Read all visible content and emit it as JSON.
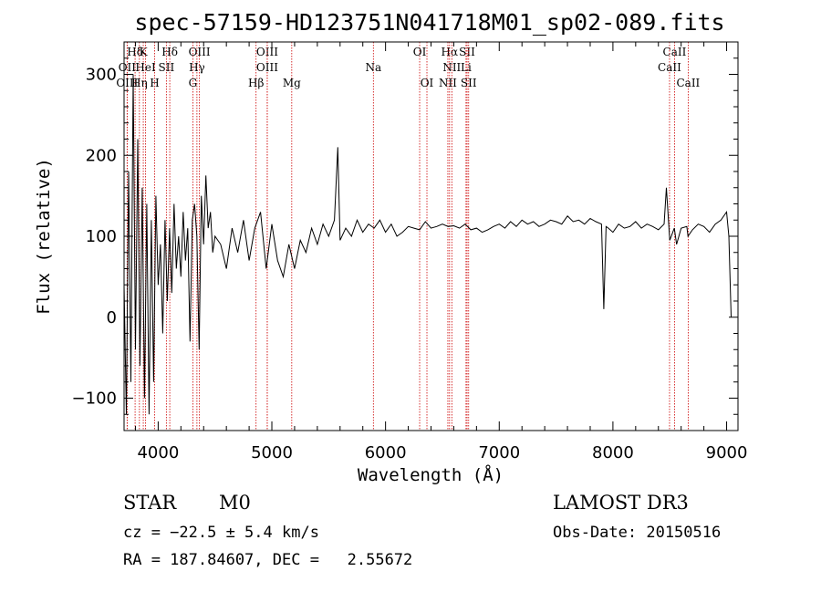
{
  "chart_data": {
    "type": "line",
    "title": "spec-57159-HD123751N041718M01_sp02-089.fits",
    "xlabel": "Wavelength (Å)",
    "ylabel": "Flux (relative)",
    "xlim": [
      3700,
      9100
    ],
    "ylim": [
      -140,
      340
    ],
    "xticks": [
      4000,
      5000,
      6000,
      7000,
      8000,
      9000
    ],
    "yticks": [
      -100,
      0,
      100,
      200,
      300
    ],
    "series": [
      {
        "name": "flux",
        "color": "#000000",
        "x": [
          3700,
          3720,
          3740,
          3760,
          3780,
          3800,
          3820,
          3840,
          3860,
          3880,
          3900,
          3920,
          3940,
          3960,
          3980,
          4000,
          4020,
          4040,
          4060,
          4080,
          4100,
          4120,
          4140,
          4160,
          4180,
          4200,
          4220,
          4240,
          4260,
          4280,
          4300,
          4320,
          4340,
          4360,
          4380,
          4400,
          4420,
          4440,
          4460,
          4480,
          4500,
          4550,
          4600,
          4650,
          4700,
          4750,
          4800,
          4850,
          4900,
          4950,
          5000,
          5050,
          5100,
          5150,
          5200,
          5250,
          5300,
          5350,
          5400,
          5450,
          5500,
          5550,
          5580,
          5600,
          5650,
          5700,
          5750,
          5800,
          5850,
          5900,
          5950,
          6000,
          6050,
          6100,
          6150,
          6200,
          6250,
          6300,
          6350,
          6400,
          6450,
          6500,
          6550,
          6600,
          6650,
          6700,
          6750,
          6800,
          6850,
          6900,
          6950,
          7000,
          7050,
          7100,
          7150,
          7200,
          7250,
          7300,
          7350,
          7400,
          7450,
          7500,
          7550,
          7600,
          7650,
          7700,
          7750,
          7800,
          7850,
          7900,
          7920,
          7940,
          7960,
          8000,
          8050,
          8100,
          8150,
          8200,
          8250,
          8300,
          8350,
          8400,
          8450,
          8470,
          8500,
          8540,
          8560,
          8600,
          8650,
          8660,
          8700,
          8750,
          8800,
          8850,
          8900,
          8950,
          9000,
          9020,
          9040
        ],
        "y": [
          40,
          -120,
          180,
          -80,
          300,
          -40,
          220,
          -60,
          160,
          -100,
          140,
          -120,
          120,
          -80,
          150,
          40,
          90,
          -20,
          120,
          20,
          110,
          30,
          140,
          60,
          100,
          50,
          130,
          70,
          110,
          -30,
          120,
          140,
          100,
          -40,
          150,
          90,
          175,
          110,
          130,
          80,
          100,
          90,
          60,
          110,
          80,
          120,
          70,
          110,
          130,
          60,
          115,
          70,
          50,
          90,
          60,
          95,
          80,
          110,
          90,
          115,
          100,
          120,
          210,
          95,
          110,
          100,
          120,
          105,
          115,
          110,
          120,
          105,
          115,
          100,
          105,
          112,
          110,
          108,
          118,
          110,
          112,
          115,
          112,
          113,
          110,
          115,
          108,
          110,
          105,
          108,
          112,
          115,
          110,
          118,
          112,
          120,
          115,
          118,
          112,
          115,
          120,
          118,
          115,
          125,
          118,
          120,
          115,
          122,
          118,
          115,
          10,
          112,
          110,
          105,
          115,
          110,
          112,
          118,
          110,
          115,
          112,
          108,
          115,
          160,
          95,
          110,
          90,
          110,
          112,
          100,
          108,
          115,
          112,
          105,
          115,
          120,
          130,
          100,
          0
        ]
      }
    ],
    "lines": [
      {
        "label": "Hδ",
        "wl": 3797,
        "row": 0
      },
      {
        "label": "K",
        "wl": 3869,
        "row": 0
      },
      {
        "label": "Hδ",
        "wl": 4102,
        "row": 0
      },
      {
        "label": "OIII",
        "wl": 4363,
        "row": 0
      },
      {
        "label": "OIII",
        "wl": 4959,
        "row": 0
      },
      {
        "label": "OI",
        "wl": 6300,
        "row": 0
      },
      {
        "label": "Hα",
        "wl": 6563,
        "row": 0
      },
      {
        "label": "SII",
        "wl": 6717,
        "row": 0
      },
      {
        "label": "CaII",
        "wl": 8542,
        "row": 0
      },
      {
        "label": "OII",
        "wl": 3727,
        "row": 1
      },
      {
        "label": "HeI",
        "wl": 3889,
        "row": 1
      },
      {
        "label": "SII",
        "wl": 4072,
        "row": 1
      },
      {
        "label": "Hγ",
        "wl": 4341,
        "row": 1
      },
      {
        "label": "OIII",
        "wl": 4959,
        "row": 1
      },
      {
        "label": "Na",
        "wl": 5893,
        "row": 1
      },
      {
        "label": "NII",
        "wl": 6583,
        "row": 1
      },
      {
        "label": "Li",
        "wl": 6708,
        "row": 1
      },
      {
        "label": "CaII",
        "wl": 8498,
        "row": 1
      },
      {
        "label": "OIII",
        "wl": 3727,
        "row": 2
      },
      {
        "label": "Hη",
        "wl": 3835,
        "row": 2
      },
      {
        "label": "H",
        "wl": 3969,
        "row": 2
      },
      {
        "label": "G",
        "wl": 4305,
        "row": 2
      },
      {
        "label": "Hβ",
        "wl": 4861,
        "row": 2
      },
      {
        "label": "Mg",
        "wl": 5175,
        "row": 2
      },
      {
        "label": "OI",
        "wl": 6364,
        "row": 2
      },
      {
        "label": "NII",
        "wl": 6548,
        "row": 2
      },
      {
        "label": "SII",
        "wl": 6731,
        "row": 2
      },
      {
        "label": "CaII",
        "wl": 8662,
        "row": 2
      }
    ]
  },
  "info": {
    "object_class": "STAR",
    "subclass": "M0",
    "survey": "LAMOST DR3",
    "cz": "cz = −22.5 ± 5.4 km/s",
    "obs_date": "Obs-Date: 20150516",
    "coords": "RA = 187.84607, DEC =   2.55672"
  },
  "colors": {
    "line_marker": "#cc0000",
    "spectrum": "#000000"
  }
}
